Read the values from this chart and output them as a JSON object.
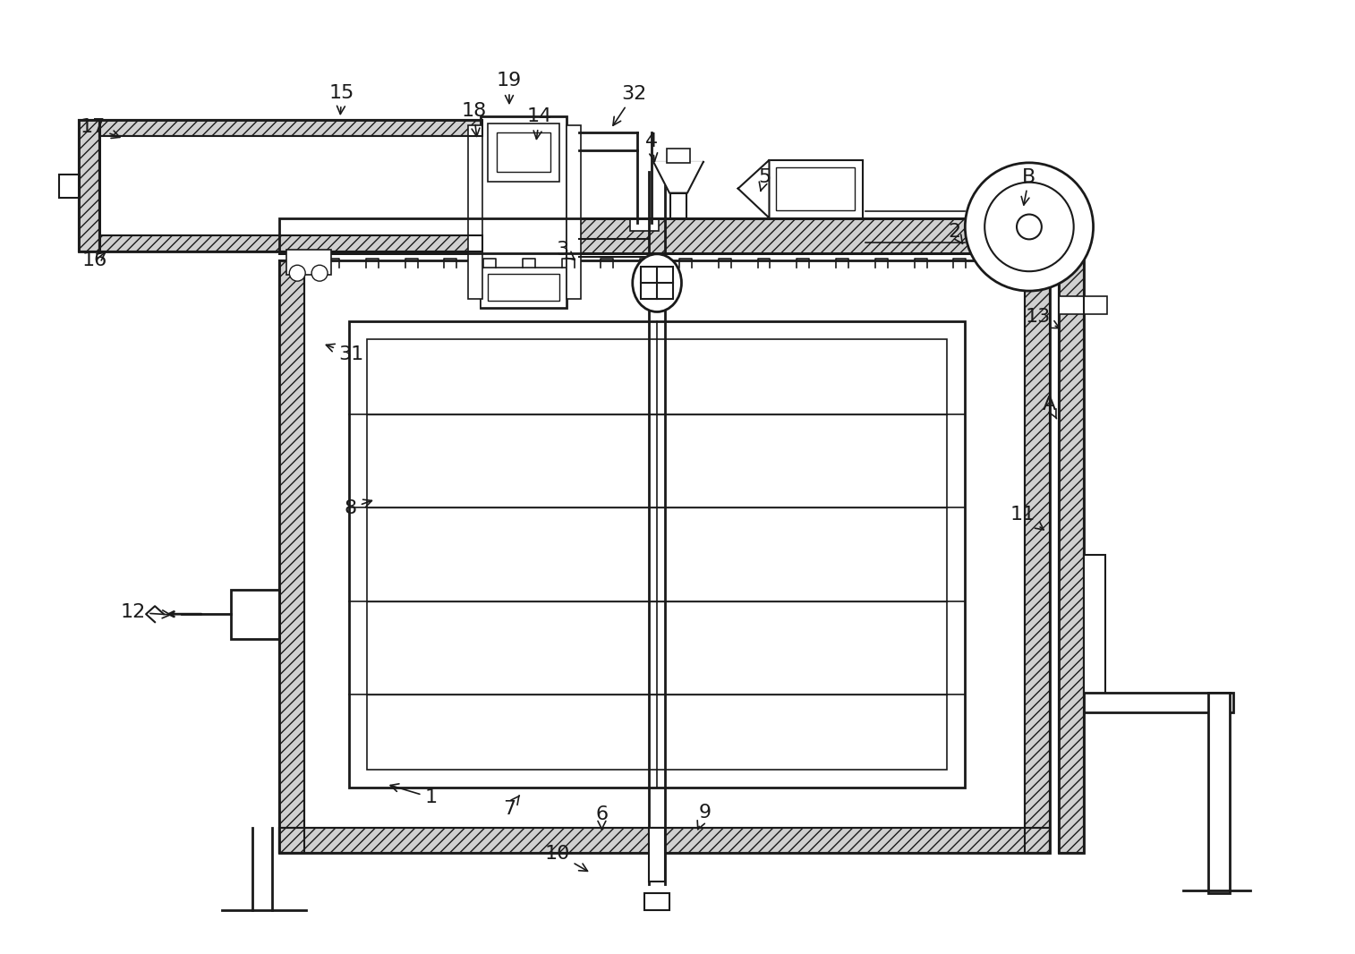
{
  "bg": "#ffffff",
  "lc": "#1a1a1a",
  "figsize": [
    15.14,
    10.66
  ],
  "dpi": 100,
  "annotations": [
    [
      "1",
      480,
      893,
      430,
      878
    ],
    [
      "2",
      1068,
      258,
      1078,
      272
    ],
    [
      "3",
      628,
      278,
      645,
      292
    ],
    [
      "4",
      728,
      156,
      732,
      183
    ],
    [
      "5",
      855,
      196,
      850,
      213
    ],
    [
      "6",
      672,
      912,
      672,
      933
    ],
    [
      "7",
      568,
      906,
      580,
      890
    ],
    [
      "8",
      390,
      568,
      418,
      558
    ],
    [
      "9",
      788,
      910,
      778,
      933
    ],
    [
      "10",
      622,
      956,
      660,
      978
    ],
    [
      "11",
      1145,
      575,
      1172,
      595
    ],
    [
      "12",
      145,
      685,
      192,
      688
    ],
    [
      "13",
      1162,
      353,
      1190,
      368
    ],
    [
      "14",
      602,
      128,
      598,
      158
    ],
    [
      "15",
      380,
      102,
      378,
      130
    ],
    [
      "16",
      102,
      290,
      118,
      278
    ],
    [
      "17",
      100,
      140,
      135,
      153
    ],
    [
      "18",
      528,
      122,
      532,
      155
    ],
    [
      "19",
      568,
      88,
      568,
      118
    ],
    [
      "31",
      390,
      395,
      358,
      383
    ],
    [
      "32",
      708,
      103,
      682,
      142
    ],
    [
      "A",
      1175,
      452,
      1183,
      468
    ],
    [
      "B",
      1152,
      196,
      1145,
      232
    ]
  ]
}
